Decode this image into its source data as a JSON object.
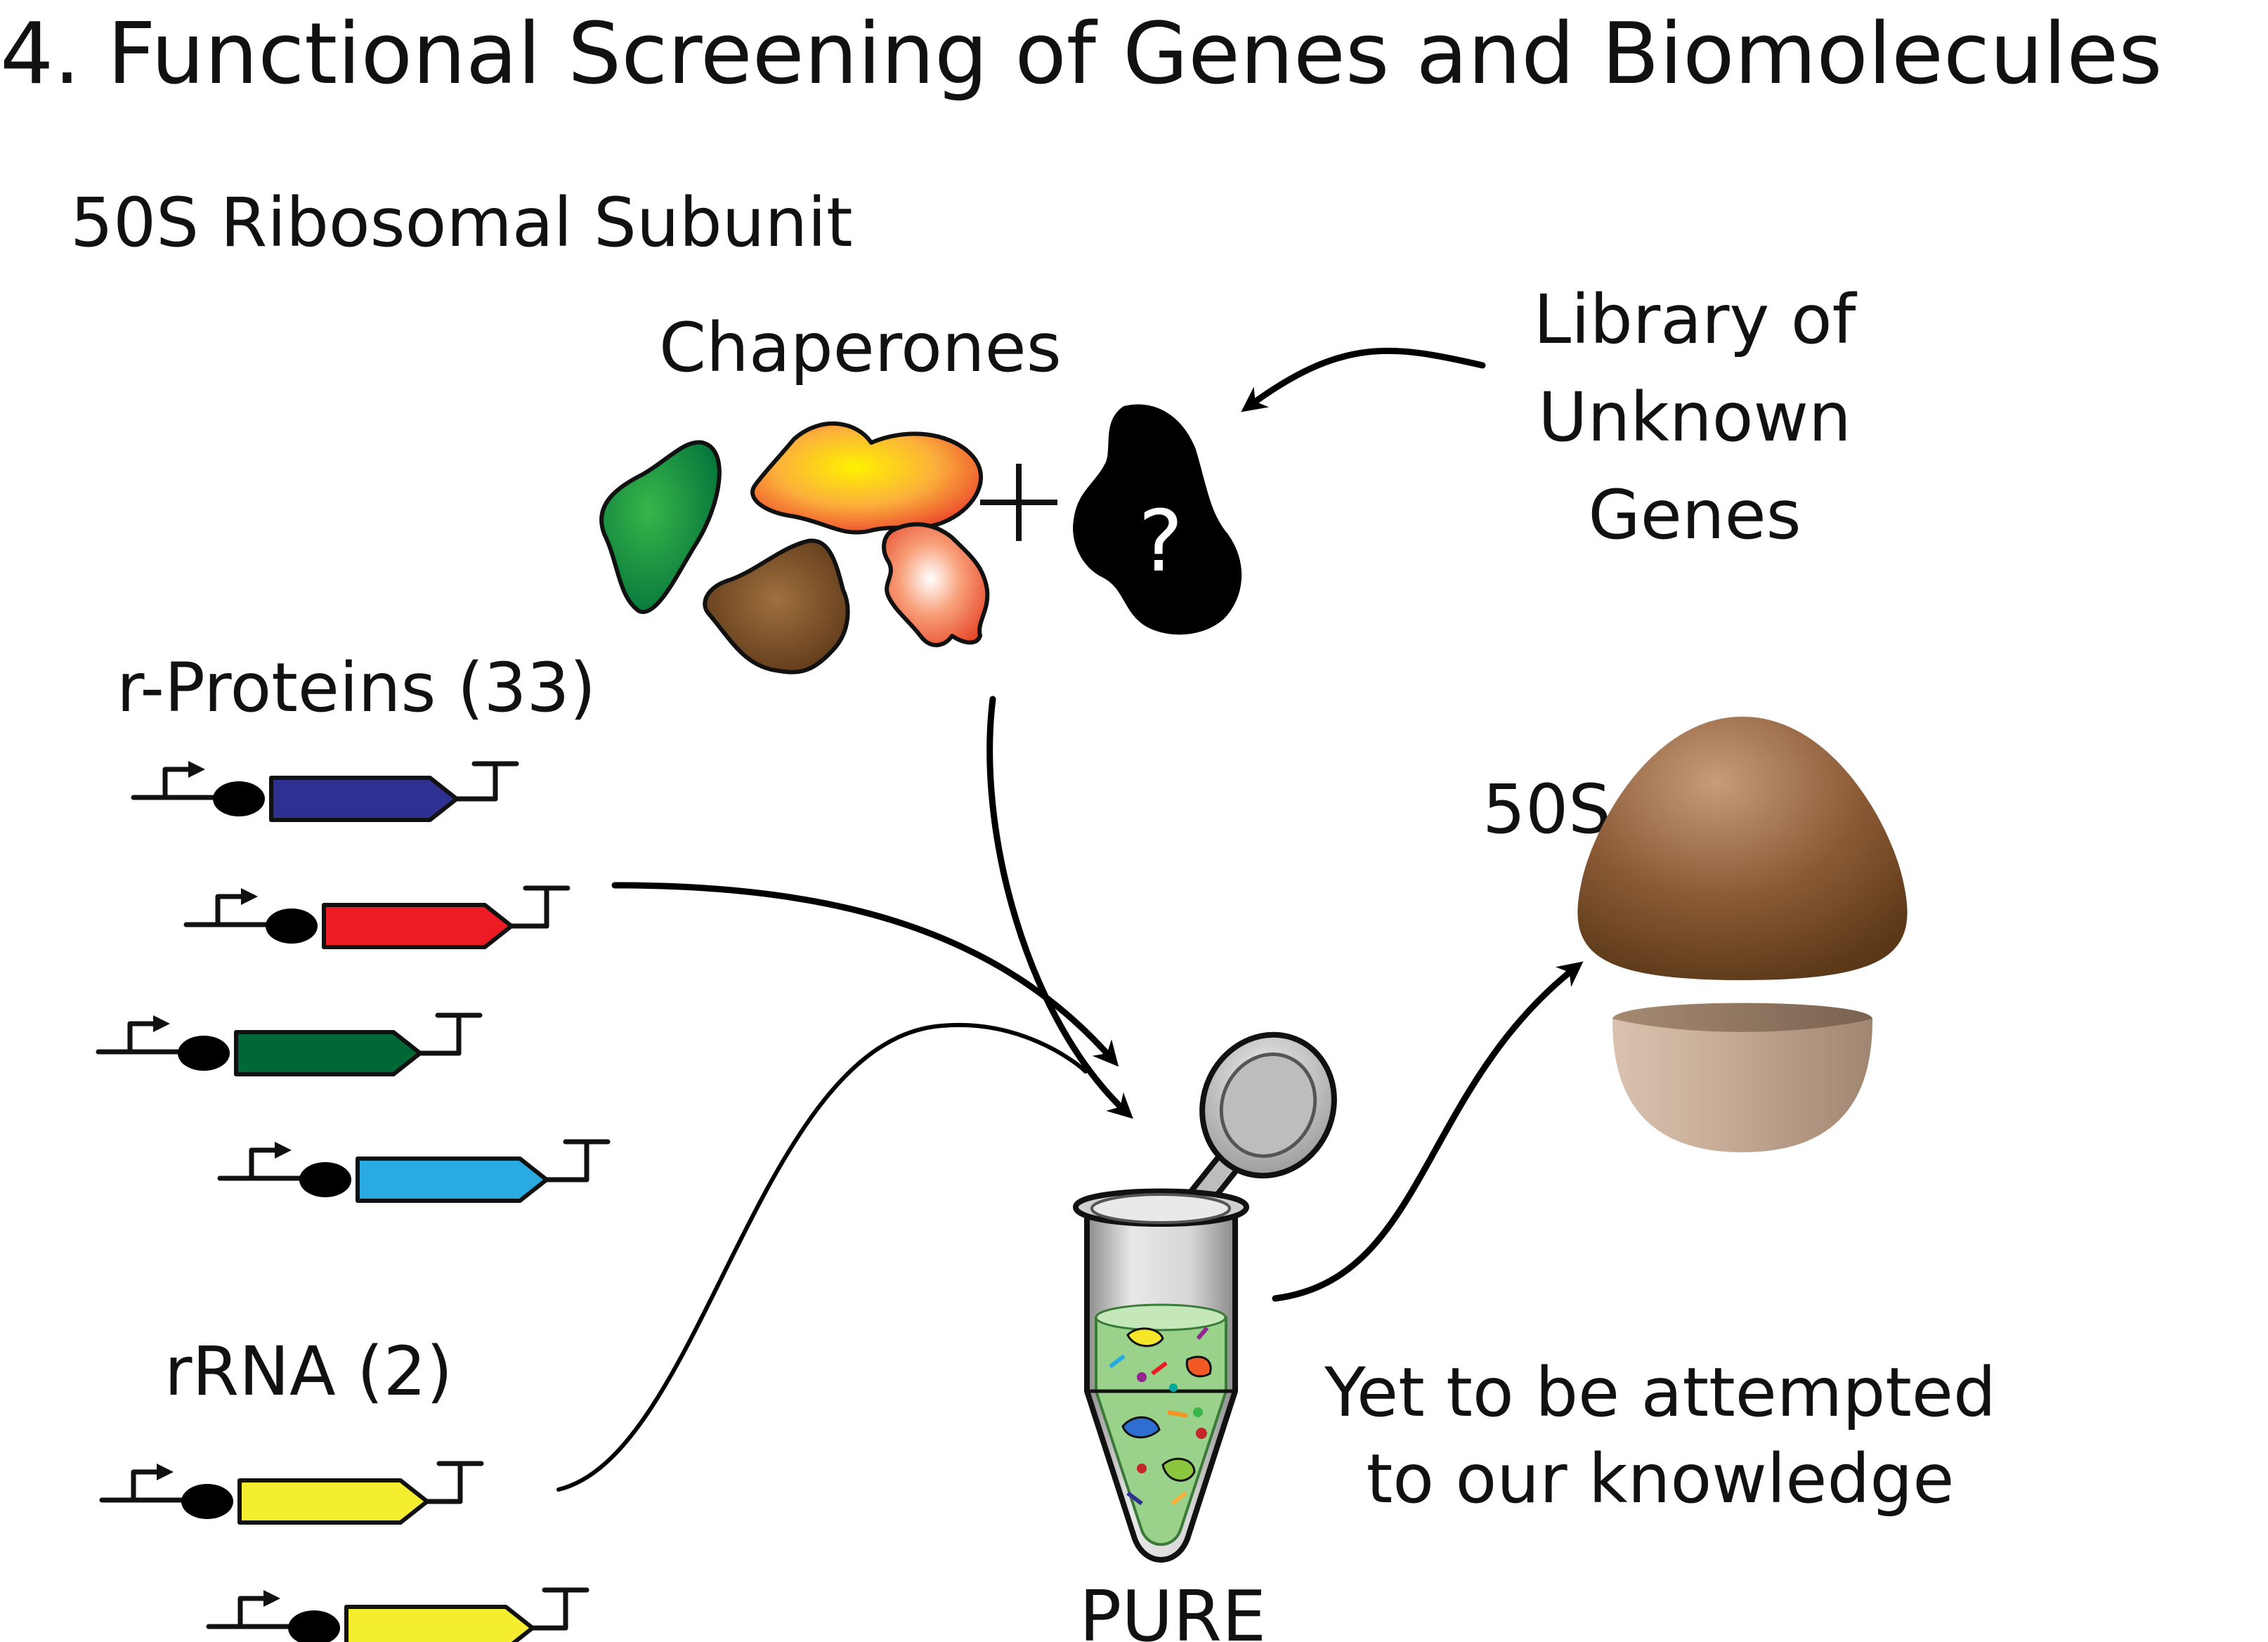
{
  "title": "4. Functional Screening of Genes and Biomolecules",
  "subtitle": "50S Ribosomal  Subunit",
  "labels": {
    "chaperones": "Chaperones",
    "library_line1": "Library of",
    "library_line2": "Unknown",
    "library_line3": "Genes",
    "question_mark": "?",
    "plus": "+",
    "r_proteins": "r-Proteins (33)",
    "rrna": "rRNA (2)",
    "pure": "PURE",
    "product": "50S",
    "note_line1": "Yet to be attempted",
    "note_line2": "to our knowledge"
  },
  "colors": {
    "blue_cds": "#2e3192",
    "red_cds": "#ed1c24",
    "green_cds": "#006837",
    "cyan_cds": "#29abe2",
    "yellow_cds": "#f5ee30",
    "ribosome_large": "#8b5a35",
    "ribosome_small": "#c8b09b",
    "pure_solution": "#9ad28b"
  },
  "icons": [
    "promoter-icon",
    "rbs-icon",
    "cds-arrow-icon",
    "terminator-icon",
    "microcentrifuge-tube-icon",
    "ribosome-50s-icon",
    "protein-blob-icon"
  ]
}
